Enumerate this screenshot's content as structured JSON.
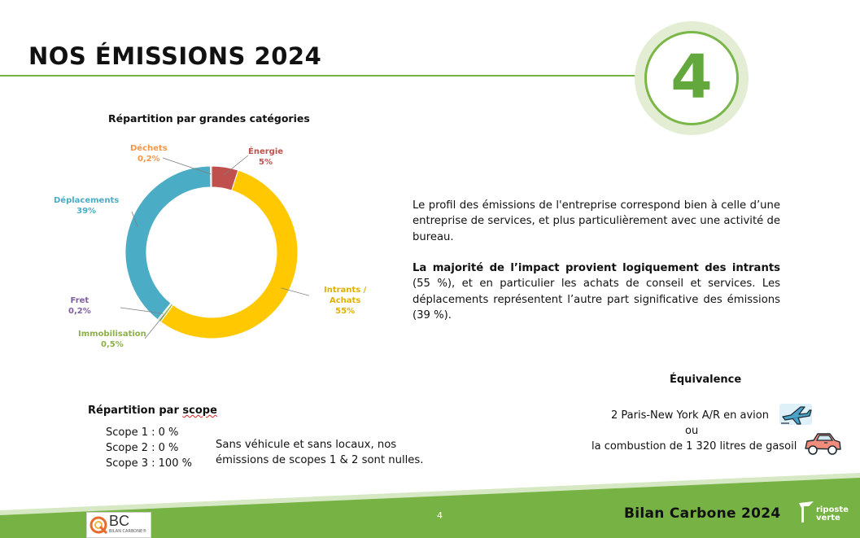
{
  "title": "NOS ÉMISSIONS 2024",
  "badge_number": "4",
  "chart_data": {
    "type": "pie",
    "title": "Répartition par grandes catégories",
    "slices": [
      {
        "name": "Énergie",
        "label": "5%",
        "value": 5,
        "color": "#c0504d"
      },
      {
        "name": "Intrants / Achats",
        "label": "55%",
        "value": 55,
        "color": "#ffc800"
      },
      {
        "name": "Immobilisation",
        "label": "0,5%",
        "value": 0.5,
        "color": "#9bbb59"
      },
      {
        "name": "Fret",
        "label": "0,2%",
        "value": 0.2,
        "color": "#7f5f9e"
      },
      {
        "name": "Déplacements",
        "label": "39%",
        "value": 39,
        "color": "#4bacc6"
      },
      {
        "name": "Déchets",
        "label": "0,2%",
        "value": 0.2,
        "color": "#f79646"
      }
    ],
    "labels": {
      "energie": {
        "name": "Énergie",
        "value": "5%",
        "color": "#c0504d"
      },
      "intrants": {
        "line1": "Intrants /",
        "line2": "Achats",
        "value": "55%",
        "color": "#e0b000"
      },
      "immo": {
        "name": "Immobilisation",
        "value": "0,5%",
        "color": "#8db04a"
      },
      "fret": {
        "name": "Fret",
        "value": "0,2%",
        "color": "#7f5f9e"
      },
      "deplacements": {
        "name": "Déplacements",
        "value": "39%",
        "color": "#4bacc6"
      },
      "dechets": {
        "name": "Déchets",
        "value": "0,2%",
        "color": "#f79646"
      }
    }
  },
  "text": {
    "para1": "Le profil des émissions de l'entreprise correspond bien à celle d’une entreprise de services, et plus particulièrement avec une activité de bureau.",
    "para2_bold": "La majorité de l’impact provient logiquement des intrants",
    "para2_rest": " (55 %), et en particulier les achats de conseil et services. Les déplacements représentent l’autre part significative des émissions (39 %)."
  },
  "scope": {
    "title_a": "Répartition par ",
    "title_b": "scope",
    "line1": "Scope 1 : 0 %",
    "line2": "Scope 2 : 0 %",
    "line3": "Scope 3 : 100 %",
    "note": "Sans véhicule et sans locaux, nos émissions de scopes 1 & 2 sont nulles."
  },
  "equivalence": {
    "title": "Équivalence",
    "line1": "2 Paris-New York A/R en avion",
    "line2": "ou",
    "line3": "la combustion de 1 320 litres de gasoil",
    "plane_icon": "plane-icon",
    "car_icon": "car-icon"
  },
  "footer": {
    "title": "Bilan Carbone 2024",
    "page": "4",
    "logo_left_text": "BC",
    "logo_left_sub": "BILAN CARBONE®",
    "logo_right_line1": "riposte",
    "logo_right_line2": "verte",
    "accent": "#76b244"
  }
}
